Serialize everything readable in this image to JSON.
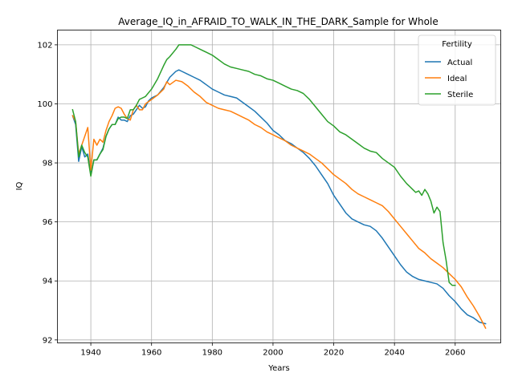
{
  "chart_data": {
    "type": "line",
    "title": "Average_IQ_in_AFRAID_TO_WALK_IN_THE_DARK_Sample for Whole",
    "xlabel": "Years",
    "ylabel": "IQ",
    "xlim": [
      1929,
      2075
    ],
    "ylim": [
      91.9,
      102.5
    ],
    "x_ticks": [
      1940,
      1960,
      1980,
      2000,
      2020,
      2040,
      2060
    ],
    "y_ticks": [
      92,
      94,
      96,
      98,
      100,
      102
    ],
    "grid": true,
    "legend": {
      "title": "Fertility",
      "placement": "top-right"
    },
    "series": [
      {
        "name": "Actual",
        "color": "#1f77b4",
        "points": [
          [
            1934,
            99.6
          ],
          [
            1935,
            99.3
          ],
          [
            1936,
            98.05
          ],
          [
            1937,
            98.55
          ],
          [
            1938,
            98.2
          ],
          [
            1939,
            98.3
          ],
          [
            1940,
            97.6
          ],
          [
            1941,
            98.1
          ],
          [
            1942,
            98.1
          ],
          [
            1943,
            98.3
          ],
          [
            1944,
            98.5
          ],
          [
            1945,
            98.9
          ],
          [
            1946,
            99.15
          ],
          [
            1947,
            99.3
          ],
          [
            1948,
            99.3
          ],
          [
            1949,
            99.55
          ],
          [
            1950,
            99.45
          ],
          [
            1951,
            99.45
          ],
          [
            1952,
            99.4
          ],
          [
            1953,
            99.6
          ],
          [
            1954,
            99.65
          ],
          [
            1955,
            99.8
          ],
          [
            1956,
            99.95
          ],
          [
            1957,
            99.85
          ],
          [
            1958,
            99.9
          ],
          [
            1959,
            100.1
          ],
          [
            1960,
            100.2
          ],
          [
            1962,
            100.3
          ],
          [
            1964,
            100.55
          ],
          [
            1966,
            100.9
          ],
          [
            1968,
            101.1
          ],
          [
            1969,
            101.15
          ],
          [
            1970,
            101.1
          ],
          [
            1972,
            101.0
          ],
          [
            1974,
            100.9
          ],
          [
            1976,
            100.8
          ],
          [
            1978,
            100.65
          ],
          [
            1980,
            100.5
          ],
          [
            1982,
            100.4
          ],
          [
            1984,
            100.3
          ],
          [
            1986,
            100.25
          ],
          [
            1988,
            100.2
          ],
          [
            1990,
            100.05
          ],
          [
            1992,
            99.9
          ],
          [
            1994,
            99.75
          ],
          [
            1996,
            99.55
          ],
          [
            1998,
            99.35
          ],
          [
            2000,
            99.1
          ],
          [
            2002,
            98.95
          ],
          [
            2004,
            98.75
          ],
          [
            2006,
            98.65
          ],
          [
            2008,
            98.5
          ],
          [
            2010,
            98.35
          ],
          [
            2012,
            98.15
          ],
          [
            2014,
            97.9
          ],
          [
            2016,
            97.6
          ],
          [
            2018,
            97.3
          ],
          [
            2020,
            96.9
          ],
          [
            2022,
            96.6
          ],
          [
            2024,
            96.3
          ],
          [
            2026,
            96.1
          ],
          [
            2028,
            96.0
          ],
          [
            2030,
            95.9
          ],
          [
            2032,
            95.85
          ],
          [
            2034,
            95.7
          ],
          [
            2036,
            95.45
          ],
          [
            2038,
            95.15
          ],
          [
            2040,
            94.85
          ],
          [
            2042,
            94.55
          ],
          [
            2044,
            94.3
          ],
          [
            2046,
            94.15
          ],
          [
            2048,
            94.05
          ],
          [
            2050,
            94.0
          ],
          [
            2052,
            93.95
          ],
          [
            2054,
            93.9
          ],
          [
            2056,
            93.75
          ],
          [
            2058,
            93.5
          ],
          [
            2060,
            93.3
          ],
          [
            2062,
            93.05
          ],
          [
            2064,
            92.85
          ],
          [
            2066,
            92.75
          ],
          [
            2068,
            92.6
          ],
          [
            2070,
            92.55
          ]
        ]
      },
      {
        "name": "Ideal",
        "color": "#ff7f0e",
        "points": [
          [
            1934,
            99.6
          ],
          [
            1935,
            99.4
          ],
          [
            1936,
            98.3
          ],
          [
            1937,
            98.6
          ],
          [
            1938,
            98.9
          ],
          [
            1939,
            99.2
          ],
          [
            1940,
            97.75
          ],
          [
            1941,
            98.8
          ],
          [
            1942,
            98.6
          ],
          [
            1943,
            98.8
          ],
          [
            1944,
            98.7
          ],
          [
            1945,
            99.1
          ],
          [
            1946,
            99.4
          ],
          [
            1947,
            99.6
          ],
          [
            1948,
            99.85
          ],
          [
            1949,
            99.9
          ],
          [
            1950,
            99.85
          ],
          [
            1951,
            99.65
          ],
          [
            1952,
            99.5
          ],
          [
            1953,
            99.45
          ],
          [
            1954,
            99.8
          ],
          [
            1955,
            99.95
          ],
          [
            1956,
            99.8
          ],
          [
            1957,
            99.8
          ],
          [
            1958,
            100.0
          ],
          [
            1960,
            100.15
          ],
          [
            1962,
            100.3
          ],
          [
            1964,
            100.5
          ],
          [
            1965,
            100.75
          ],
          [
            1966,
            100.65
          ],
          [
            1968,
            100.8
          ],
          [
            1970,
            100.75
          ],
          [
            1972,
            100.6
          ],
          [
            1974,
            100.4
          ],
          [
            1976,
            100.25
          ],
          [
            1978,
            100.05
          ],
          [
            1980,
            99.95
          ],
          [
            1982,
            99.85
          ],
          [
            1984,
            99.8
          ],
          [
            1986,
            99.75
          ],
          [
            1988,
            99.65
          ],
          [
            1990,
            99.55
          ],
          [
            1992,
            99.45
          ],
          [
            1994,
            99.3
          ],
          [
            1996,
            99.2
          ],
          [
            1998,
            99.05
          ],
          [
            2000,
            98.95
          ],
          [
            2002,
            98.85
          ],
          [
            2004,
            98.75
          ],
          [
            2006,
            98.6
          ],
          [
            2008,
            98.5
          ],
          [
            2010,
            98.4
          ],
          [
            2012,
            98.3
          ],
          [
            2014,
            98.15
          ],
          [
            2016,
            98.0
          ],
          [
            2018,
            97.8
          ],
          [
            2020,
            97.6
          ],
          [
            2022,
            97.45
          ],
          [
            2024,
            97.3
          ],
          [
            2026,
            97.1
          ],
          [
            2028,
            96.95
          ],
          [
            2030,
            96.85
          ],
          [
            2032,
            96.75
          ],
          [
            2034,
            96.65
          ],
          [
            2036,
            96.55
          ],
          [
            2038,
            96.35
          ],
          [
            2040,
            96.1
          ],
          [
            2042,
            95.85
          ],
          [
            2044,
            95.6
          ],
          [
            2046,
            95.35
          ],
          [
            2048,
            95.1
          ],
          [
            2050,
            94.95
          ],
          [
            2052,
            94.75
          ],
          [
            2054,
            94.6
          ],
          [
            2056,
            94.45
          ],
          [
            2058,
            94.25
          ],
          [
            2060,
            94.05
          ],
          [
            2062,
            93.8
          ],
          [
            2064,
            93.45
          ],
          [
            2066,
            93.15
          ],
          [
            2068,
            92.8
          ],
          [
            2070,
            92.4
          ]
        ]
      },
      {
        "name": "Sterile",
        "color": "#2ca02c",
        "points": [
          [
            1934,
            99.8
          ],
          [
            1935,
            99.4
          ],
          [
            1936,
            98.2
          ],
          [
            1937,
            98.6
          ],
          [
            1938,
            98.35
          ],
          [
            1939,
            98.2
          ],
          [
            1940,
            97.55
          ],
          [
            1941,
            98.1
          ],
          [
            1942,
            98.1
          ],
          [
            1943,
            98.3
          ],
          [
            1944,
            98.45
          ],
          [
            1945,
            98.9
          ],
          [
            1946,
            99.15
          ],
          [
            1947,
            99.3
          ],
          [
            1948,
            99.3
          ],
          [
            1949,
            99.5
          ],
          [
            1950,
            99.55
          ],
          [
            1951,
            99.55
          ],
          [
            1952,
            99.5
          ],
          [
            1953,
            99.8
          ],
          [
            1954,
            99.8
          ],
          [
            1955,
            99.95
          ],
          [
            1956,
            100.15
          ],
          [
            1957,
            100.2
          ],
          [
            1958,
            100.25
          ],
          [
            1960,
            100.5
          ],
          [
            1962,
            100.85
          ],
          [
            1964,
            101.3
          ],
          [
            1965,
            101.5
          ],
          [
            1966,
            101.6
          ],
          [
            1968,
            101.85
          ],
          [
            1969,
            102.0
          ],
          [
            1970,
            102.0
          ],
          [
            1972,
            102.0
          ],
          [
            1973,
            102.0
          ],
          [
            1974,
            101.95
          ],
          [
            1976,
            101.85
          ],
          [
            1978,
            101.75
          ],
          [
            1980,
            101.65
          ],
          [
            1982,
            101.5
          ],
          [
            1984,
            101.35
          ],
          [
            1986,
            101.25
          ],
          [
            1988,
            101.2
          ],
          [
            1990,
            101.15
          ],
          [
            1992,
            101.1
          ],
          [
            1994,
            101.0
          ],
          [
            1996,
            100.95
          ],
          [
            1998,
            100.85
          ],
          [
            2000,
            100.8
          ],
          [
            2002,
            100.7
          ],
          [
            2004,
            100.6
          ],
          [
            2006,
            100.5
          ],
          [
            2008,
            100.45
          ],
          [
            2010,
            100.35
          ],
          [
            2012,
            100.15
          ],
          [
            2014,
            99.9
          ],
          [
            2016,
            99.65
          ],
          [
            2018,
            99.4
          ],
          [
            2020,
            99.25
          ],
          [
            2022,
            99.05
          ],
          [
            2024,
            98.95
          ],
          [
            2026,
            98.8
          ],
          [
            2028,
            98.65
          ],
          [
            2030,
            98.5
          ],
          [
            2032,
            98.4
          ],
          [
            2034,
            98.35
          ],
          [
            2036,
            98.15
          ],
          [
            2038,
            98.0
          ],
          [
            2040,
            97.85
          ],
          [
            2042,
            97.55
          ],
          [
            2044,
            97.3
          ],
          [
            2046,
            97.1
          ],
          [
            2047,
            97.0
          ],
          [
            2048,
            97.05
          ],
          [
            2049,
            96.9
          ],
          [
            2050,
            97.1
          ],
          [
            2051,
            96.95
          ],
          [
            2052,
            96.7
          ],
          [
            2053,
            96.3
          ],
          [
            2054,
            96.5
          ],
          [
            2055,
            96.35
          ],
          [
            2056,
            95.3
          ],
          [
            2057,
            94.7
          ],
          [
            2058,
            93.95
          ],
          [
            2059,
            93.85
          ],
          [
            2060,
            93.85
          ]
        ]
      }
    ]
  }
}
